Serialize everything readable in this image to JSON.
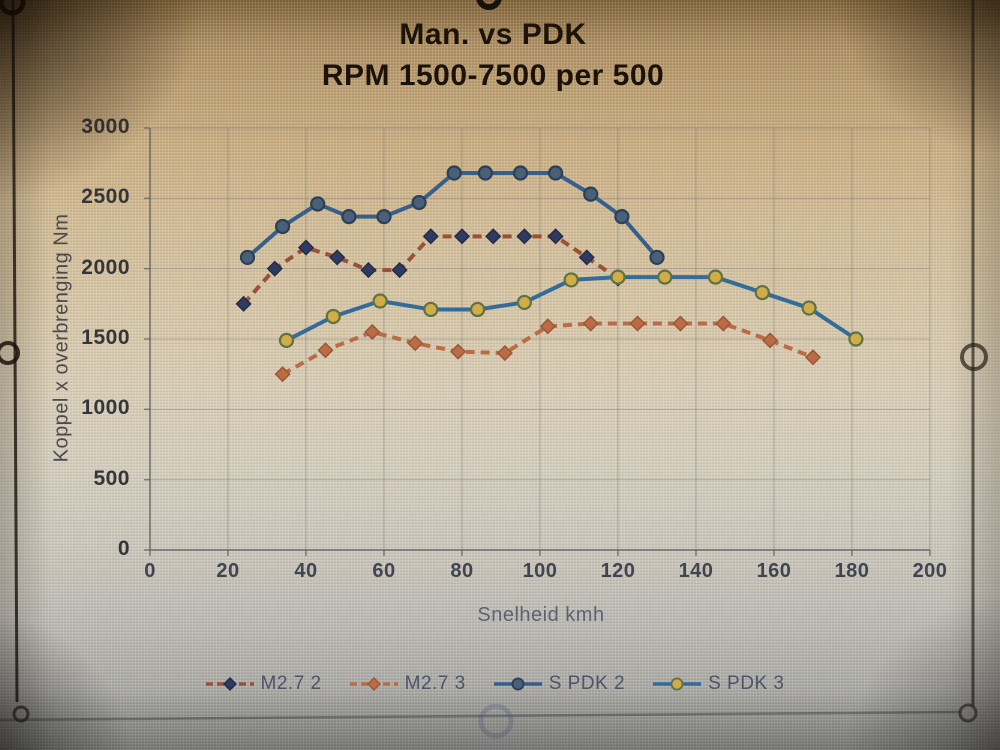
{
  "chart_data": {
    "type": "line",
    "title": "Man. vs PDK",
    "subtitle": "RPM 1500-7500 per 500",
    "xlabel": "Snelheid kmh",
    "ylabel": "Koppel x overbrenging Nm",
    "xlim": [
      0,
      200
    ],
    "ylim": [
      0,
      3000
    ],
    "x_ticks": [
      0,
      20,
      40,
      60,
      80,
      100,
      120,
      140,
      160,
      180,
      200
    ],
    "y_ticks": [
      0,
      500,
      1000,
      1500,
      2000,
      2500,
      3000
    ],
    "grid": true,
    "legend_position": "bottom",
    "series": [
      {
        "name": "M2.7 2",
        "line_color": "#9e5034",
        "marker": "diamond",
        "marker_fill": "#2f3a63",
        "marker_stroke": "#232c4d",
        "dashed": true,
        "points": [
          [
            24,
            1750
          ],
          [
            32,
            2000
          ],
          [
            40,
            2150
          ],
          [
            48,
            2080
          ],
          [
            56,
            1990
          ],
          [
            64,
            1990
          ],
          [
            72,
            2230
          ],
          [
            80,
            2230
          ],
          [
            88,
            2230
          ],
          [
            96,
            2230
          ],
          [
            104,
            2230
          ],
          [
            112,
            2080
          ],
          [
            120,
            1930
          ]
        ]
      },
      {
        "name": "M2.7 3",
        "line_color": "#bf6b40",
        "marker": "diamond",
        "marker_fill": "#bf6b40",
        "marker_stroke": "#a35630",
        "dashed": true,
        "points": [
          [
            34,
            1250
          ],
          [
            45,
            1420
          ],
          [
            57,
            1550
          ],
          [
            68,
            1470
          ],
          [
            79,
            1410
          ],
          [
            91,
            1400
          ],
          [
            102,
            1590
          ],
          [
            113,
            1610
          ],
          [
            125,
            1610
          ],
          [
            136,
            1610
          ],
          [
            147,
            1610
          ],
          [
            159,
            1490
          ],
          [
            170,
            1370
          ]
        ]
      },
      {
        "name": "S PDK 2",
        "line_color": "#33618f",
        "marker": "circle",
        "marker_fill": "#46607c",
        "marker_stroke": "#2b4056",
        "dashed": false,
        "points": [
          [
            25,
            2080
          ],
          [
            34,
            2300
          ],
          [
            43,
            2460
          ],
          [
            51,
            2370
          ],
          [
            60,
            2370
          ],
          [
            69,
            2470
          ],
          [
            78,
            2680
          ],
          [
            86,
            2680
          ],
          [
            95,
            2680
          ],
          [
            104,
            2680
          ],
          [
            113,
            2530
          ],
          [
            121,
            2370
          ],
          [
            130,
            2080
          ]
        ]
      },
      {
        "name": "S PDK 3",
        "line_color": "#2f6da1",
        "marker": "circle",
        "marker_fill": "#d4ad41",
        "marker_stroke": "#5d7340",
        "dashed": false,
        "points": [
          [
            35,
            1490
          ],
          [
            47,
            1660
          ],
          [
            59,
            1770
          ],
          [
            72,
            1710
          ],
          [
            84,
            1710
          ],
          [
            96,
            1760
          ],
          [
            108,
            1920
          ],
          [
            120,
            1940
          ],
          [
            132,
            1940
          ],
          [
            145,
            1940
          ],
          [
            157,
            1830
          ],
          [
            169,
            1720
          ],
          [
            181,
            1500
          ]
        ]
      }
    ]
  }
}
